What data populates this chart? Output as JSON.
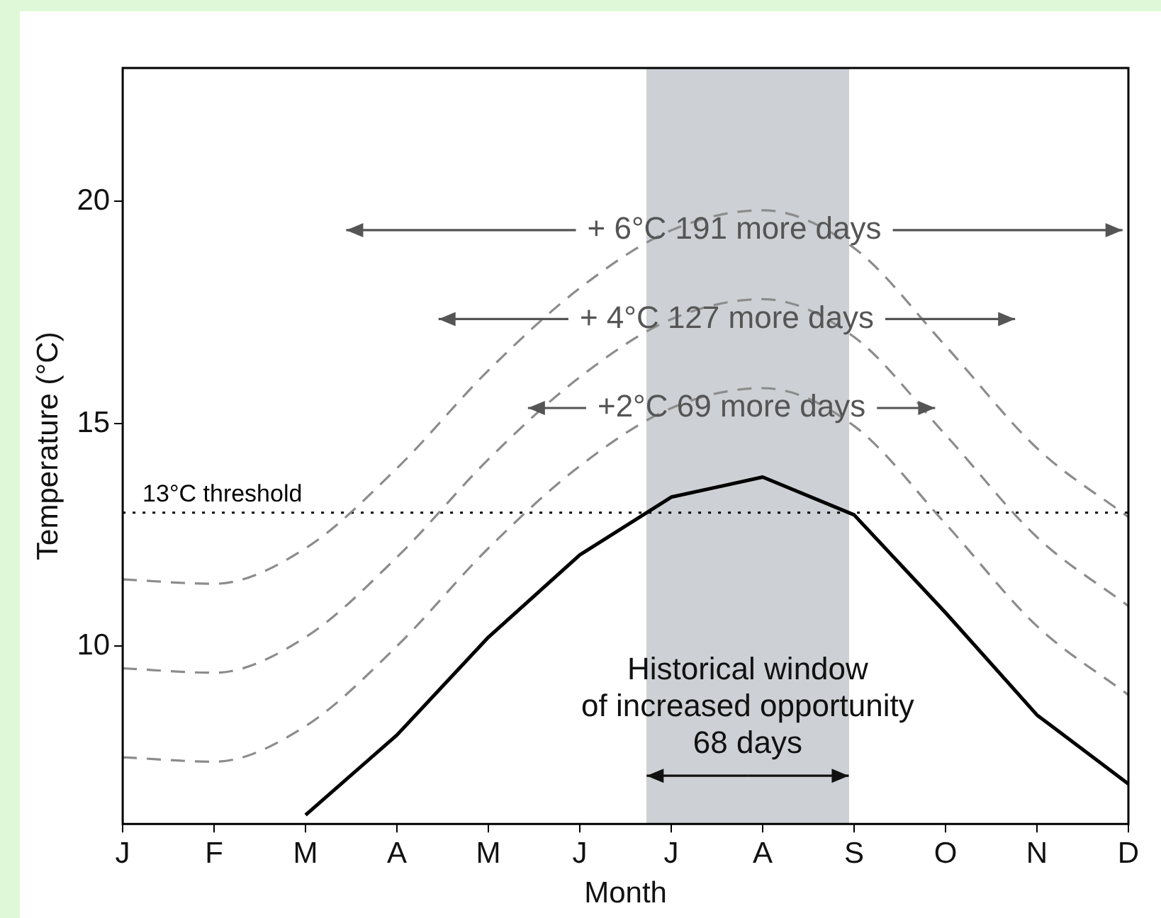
{
  "chart_data": {
    "type": "line",
    "xlabel": "Month",
    "ylabel": "Temperature (°C)",
    "categories": [
      "J",
      "F",
      "M",
      "A",
      "M",
      "J",
      "J",
      "A",
      "S",
      "O",
      "N",
      "D"
    ],
    "ylim": [
      6,
      23
    ],
    "yticks": [
      10,
      15,
      20
    ],
    "series": [
      {
        "color": "#000000",
        "line_style": "solid",
        "values": [
          null,
          null,
          6.2,
          8.0,
          10.2,
          12.05,
          13.35,
          13.8,
          12.95,
          10.75,
          8.45,
          6.9
        ]
      },
      {
        "color": "#8c8c8c",
        "line_style": "dashed",
        "values": [
          7.5,
          7.4,
          8.2,
          10.0,
          12.2,
          14.05,
          15.35,
          15.8,
          14.95,
          12.75,
          10.45,
          8.9
        ]
      },
      {
        "color": "#8c8c8c",
        "line_style": "dashed",
        "values": [
          9.5,
          9.4,
          10.2,
          12.0,
          14.2,
          16.05,
          17.35,
          17.8,
          16.95,
          14.75,
          12.45,
          10.9
        ]
      },
      {
        "color": "#8c8c8c",
        "line_style": "dashed",
        "values": [
          11.5,
          11.4,
          12.2,
          14.0,
          16.2,
          18.05,
          19.35,
          19.8,
          18.95,
          16.75,
          14.45,
          12.9
        ]
      }
    ],
    "ref_lines": [
      {
        "axis": "y",
        "value": 13,
        "label": "13°C threshold",
        "color": "#000000",
        "line_style": "dotted"
      }
    ],
    "annotations": [
      "Historical window\nof increased opportunity\n68 days",
      "+2°C 69 more days",
      "+ 4°C 127 more days",
      "+ 6°C 191 more days"
    ],
    "grid": false,
    "legend": false,
    "marker": "none"
  }
}
